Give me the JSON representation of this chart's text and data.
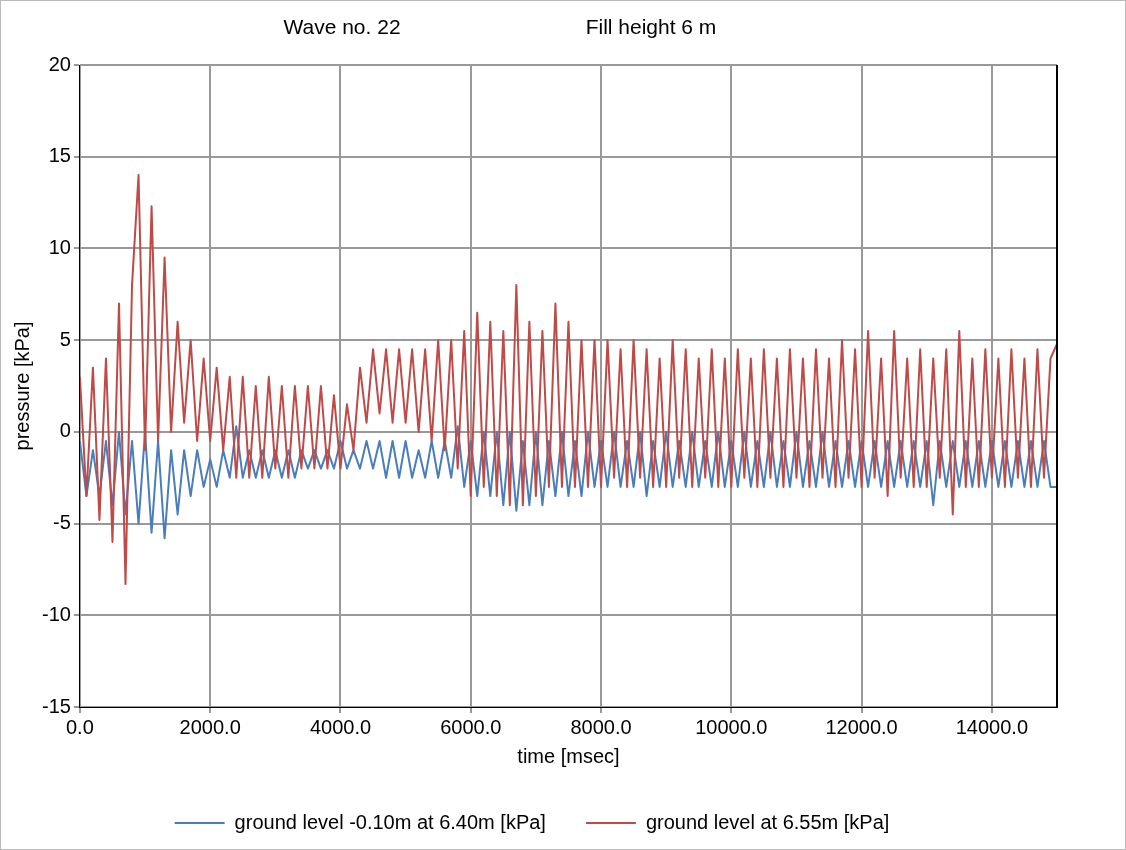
{
  "chart_data": {
    "type": "line",
    "title": "Wave no. 22",
    "subtitle": "Fill height 6 m",
    "xlabel": "time [msec]",
    "ylabel": "pressure [kPa]",
    "x": [
      0,
      100,
      200,
      300,
      400,
      500,
      600,
      700,
      800,
      900,
      1000,
      1100,
      1200,
      1300,
      1400,
      1500,
      1600,
      1700,
      1800,
      1900,
      2000,
      2100,
      2200,
      2300,
      2400,
      2500,
      2600,
      2700,
      2800,
      2900,
      3000,
      3100,
      3200,
      3300,
      3400,
      3500,
      3600,
      3700,
      3800,
      3900,
      4000,
      4100,
      4200,
      4300,
      4400,
      4500,
      4600,
      4700,
      4800,
      4900,
      5000,
      5100,
      5200,
      5300,
      5400,
      5500,
      5600,
      5700,
      5800,
      5900,
      6000,
      6100,
      6200,
      6300,
      6400,
      6500,
      6600,
      6700,
      6800,
      6900,
      7000,
      7100,
      7200,
      7300,
      7400,
      7500,
      7600,
      7700,
      7800,
      7900,
      8000,
      8100,
      8200,
      8300,
      8400,
      8500,
      8600,
      8700,
      8800,
      8900,
      9000,
      9100,
      9200,
      9300,
      9400,
      9500,
      9600,
      9700,
      9800,
      9900,
      10000,
      10100,
      10200,
      10300,
      10400,
      10500,
      10600,
      10700,
      10800,
      10900,
      11000,
      11100,
      11200,
      11300,
      11400,
      11500,
      11600,
      11700,
      11800,
      11900,
      12000,
      12100,
      12200,
      12300,
      12400,
      12500,
      12600,
      12700,
      12800,
      12900,
      13000,
      13100,
      13200,
      13300,
      13400,
      13500,
      13600,
      13700,
      13800,
      13900,
      14000,
      14100,
      14200,
      14300,
      14400,
      14500,
      14600,
      14700,
      14800,
      14900,
      15000
    ],
    "series": [
      {
        "name": "ground level -0.10m at 6.40m [kPa]",
        "color": "#4a7ebb",
        "values": [
          -0.5,
          -3.5,
          -1,
          -3.5,
          -0.5,
          -4,
          0,
          -4.5,
          -0.5,
          -5,
          0,
          -5.5,
          -0.5,
          -5.8,
          -1,
          -4.5,
          -1,
          -3.5,
          -1,
          -3,
          -1.5,
          -3,
          -1,
          -2.5,
          0.3,
          -2.5,
          -1,
          -2.5,
          -1,
          -2.5,
          -1,
          -2.5,
          -1,
          -2.5,
          -1,
          -2,
          -1,
          -2,
          -1,
          -2,
          -0.5,
          -2,
          -1,
          -2,
          -0.5,
          -2,
          -0.5,
          -2.5,
          -0.5,
          -2.5,
          -0.5,
          -2.5,
          -1,
          -2.5,
          -0.5,
          -2.5,
          -0.5,
          -2.5,
          0.3,
          -3,
          -0.5,
          -3.5,
          0,
          -3.5,
          0,
          -4,
          0,
          -4.3,
          -0.5,
          -4,
          0,
          -4,
          -0.5,
          -3.5,
          0,
          -3.5,
          -0.5,
          -3.5,
          0,
          -3,
          -0.5,
          -3,
          0,
          -3,
          -0.5,
          -3,
          0,
          -3.5,
          -0.5,
          -3,
          0,
          -3,
          -0.5,
          -3,
          0,
          -3,
          -0.5,
          -3,
          0,
          -3,
          -0.5,
          -3,
          0,
          -3,
          -0.5,
          -3,
          0,
          -3,
          -0.5,
          -3,
          0,
          -3,
          -0.5,
          -3,
          0,
          -3,
          -0.5,
          -3,
          -0.5,
          -3,
          -0.5,
          -3,
          -0.5,
          -3,
          -0.5,
          -3,
          -0.5,
          -3,
          -0.5,
          -3,
          -0.5,
          -4,
          -0.5,
          -3,
          -0.5,
          -3,
          -0.5,
          -3,
          -0.5,
          -3,
          -0.5,
          -3,
          -0.5,
          -3,
          -0.5,
          -3,
          -0.5,
          -3,
          -0.5,
          -3,
          -3
        ]
      },
      {
        "name": "ground level at 6.55m [kPa]",
        "color": "#be4b48",
        "values": [
          3,
          -3.5,
          3.5,
          -4.8,
          4,
          -6,
          7,
          -8.3,
          8,
          14,
          -1,
          12.3,
          -0.5,
          9.5,
          0,
          6,
          0.5,
          5,
          -0.5,
          4,
          -0.5,
          3.5,
          -1,
          3,
          -2.5,
          3,
          -2.5,
          2.5,
          -2.5,
          3,
          -2,
          2.5,
          -2.5,
          2.5,
          -2,
          2.5,
          -2,
          2.5,
          -2,
          2,
          -2,
          1.5,
          -1,
          3.5,
          0.5,
          4.5,
          1,
          4.5,
          0.5,
          4.5,
          0.5,
          4.5,
          0,
          4.5,
          -0.5,
          5,
          -1,
          5,
          -2,
          5.5,
          -3.5,
          6.5,
          -3,
          6,
          -3.5,
          5.5,
          -4,
          8,
          -4,
          6,
          -3.5,
          5.5,
          -3,
          7,
          -3,
          6,
          -3,
          5,
          -3,
          5,
          -3,
          5,
          -2.5,
          4.5,
          -3,
          5,
          -2.5,
          4.5,
          -3,
          4,
          -3,
          5,
          -2.5,
          4.5,
          -3,
          4,
          -2.5,
          4.5,
          -3,
          4,
          -3,
          4.5,
          -2.5,
          4,
          -3,
          4.5,
          -2.5,
          4,
          -3,
          4.5,
          -2.5,
          4,
          -3,
          4.5,
          -2.5,
          4,
          -3,
          5,
          -2.5,
          4.5,
          -3,
          5.5,
          -2.5,
          4,
          -3.5,
          5.5,
          -2.5,
          4,
          -3,
          4.5,
          -3,
          4,
          -2.5,
          4.5,
          -4.5,
          5.5,
          -3,
          4,
          -3,
          4.5,
          -2.5,
          4,
          -3,
          4.5,
          -2.5,
          4,
          -3,
          4.5,
          -2.5,
          4,
          4.8
        ]
      }
    ],
    "xlim": [
      0,
      15000
    ],
    "xticks": [
      {
        "value": 0,
        "label": "0.0"
      },
      {
        "value": 2000,
        "label": "2000.0"
      },
      {
        "value": 4000,
        "label": "4000.0"
      },
      {
        "value": 6000,
        "label": "6000.0"
      },
      {
        "value": 8000,
        "label": "8000.0"
      },
      {
        "value": 10000,
        "label": "10000.0"
      },
      {
        "value": 12000,
        "label": "12000.0"
      },
      {
        "value": 14000,
        "label": "14000.0"
      }
    ],
    "ylim": [
      -15,
      20
    ],
    "yticks": [
      -15,
      -10,
      -5,
      0,
      5,
      10,
      15,
      20
    ],
    "grid": true,
    "legend": "bottom",
    "marker": "none",
    "line_style": "solid"
  }
}
